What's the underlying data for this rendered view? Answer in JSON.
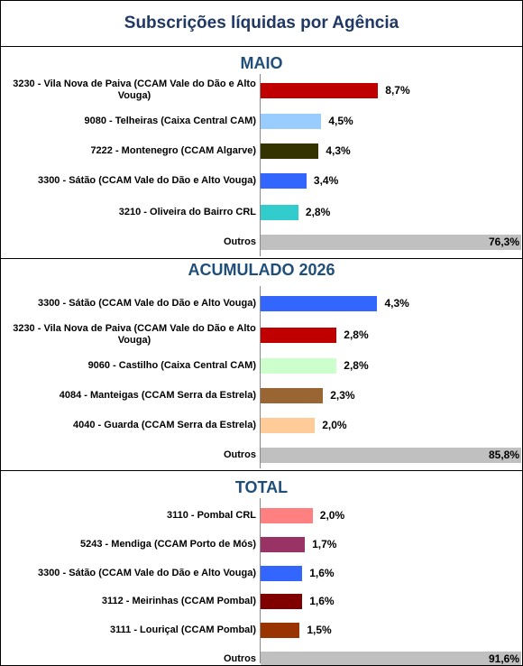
{
  "title": "Subscrições líquidas por Agência",
  "chart_data": [
    {
      "type": "bar",
      "title": "MAIO",
      "xlim": [
        0,
        19.3
      ],
      "categories": [
        "3230 - Vila Nova de Paiva (CCAM Vale do Dão e Alto Vouga)",
        "9080 - Telheiras (Caixa Central CAM)",
        "7222 - Montenegro (CCAM Algarve)",
        "3300 - Sátão (CCAM Vale do Dão e Alto Vouga)",
        "3210 - Oliveira do Bairro CRL",
        "Outros"
      ],
      "values": [
        8.7,
        4.5,
        4.3,
        3.4,
        2.8,
        76.3
      ],
      "value_labels": [
        "8,7%",
        "4,5%",
        "4,3%",
        "3,4%",
        "2,8%",
        "76,3%"
      ],
      "colors": [
        "#c00000",
        "#99ccff",
        "#333300",
        "#3366ff",
        "#33cccc",
        "#c0c0c0"
      ]
    },
    {
      "type": "bar",
      "title": "ACUMULADO 2026",
      "xlim": [
        0,
        9.6
      ],
      "categories": [
        "3300 - Sátão (CCAM Vale do Dão e Alto Vouga)",
        "3230 - Vila Nova de Paiva (CCAM Vale do Dão e Alto Vouga)",
        "9060 - Castilho (Caixa Central CAM)",
        "4084 - Manteigas (CCAM Serra da Estrela)",
        "4040 - Guarda (CCAM Serra da Estrela)",
        "Outros"
      ],
      "values": [
        4.3,
        2.8,
        2.8,
        2.3,
        2.0,
        85.8
      ],
      "value_labels": [
        "4,3%",
        "2,8%",
        "2,8%",
        "2,3%",
        "2,0%",
        "85,8%"
      ],
      "colors": [
        "#3366ff",
        "#c00000",
        "#ccffcc",
        "#996633",
        "#ffcc99",
        "#c0c0c0"
      ]
    },
    {
      "type": "bar",
      "title": "TOTAL",
      "xlim": [
        0,
        10
      ],
      "categories": [
        "3110 - Pombal CRL",
        "5243 - Mendiga (CCAM Porto de Mós)",
        "3300 - Sátão (CCAM Vale do Dão e Alto Vouga)",
        "3112 - Meirinhas (CCAM Pombal)",
        "3111 - Louriçal (CCAM Pombal)",
        "Outros"
      ],
      "values": [
        2.0,
        1.7,
        1.6,
        1.6,
        1.5,
        91.6
      ],
      "value_labels": [
        "2,0%",
        "1,7%",
        "1,6%",
        "1,6%",
        "1,5%",
        "91,6%"
      ],
      "colors": [
        "#ff8080",
        "#993366",
        "#3366ff",
        "#800000",
        "#993300",
        "#c0c0c0"
      ]
    }
  ]
}
